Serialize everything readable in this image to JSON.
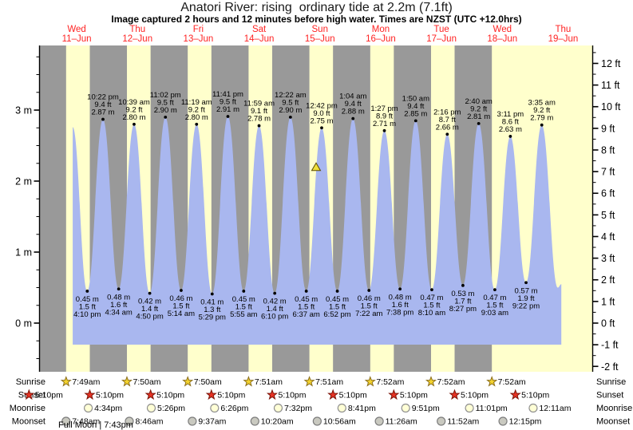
{
  "title": "Anatori River: rising  ordinary tide at 2.2m (7.1ft)",
  "subtitle": "Image captured 2 hours and 12 minutes before high water. Times are NZST (UTC +12.0hrs)",
  "footnote": "Full Moon | 7:43pm",
  "colors": {
    "day_band": "#ffffcc",
    "night_band": "#999999",
    "tide_fill": "#a9b7ef",
    "day_label_red": "#ff2222",
    "axis_black": "#000000",
    "sunrise_star_fill": "#f2d22e",
    "sunrise_star_stroke": "#8a6d1a",
    "sunset_star_fill": "#e63223",
    "sunset_star_stroke": "#7a1408",
    "moonrise_fill": "#ffffd6",
    "moonrise_stroke": "#8f8f8f",
    "moonset_fill": "#c9c9c0",
    "moonset_stroke": "#7d7d7d",
    "marker_fill": "#f0e03c",
    "marker_stroke": "#5a4a00"
  },
  "chart_data": {
    "type": "area",
    "title": "Anatori River: rising  ordinary tide at 2.2m (7.1ft)",
    "subtitle": "Image captured 2 hours and 12 minutes before high water. Times are NZST (UTC +12.0hrs)",
    "x_axis_days": [
      {
        "name": "Wed",
        "date": "11–Jun"
      },
      {
        "name": "Thu",
        "date": "12–Jun"
      },
      {
        "name": "Fri",
        "date": "13–Jun"
      },
      {
        "name": "Sat",
        "date": "14–Jun"
      },
      {
        "name": "Sun",
        "date": "15–Jun"
      },
      {
        "name": "Mon",
        "date": "16–Jun"
      },
      {
        "name": "Tue",
        "date": "17–Jun"
      },
      {
        "name": "Wed",
        "date": "18–Jun"
      },
      {
        "name": "Thu",
        "date": "19–Jun"
      }
    ],
    "y_axis_left": {
      "unit": "m",
      "major_ticks": [
        0,
        1,
        2,
        3
      ],
      "minor_step": 0.25,
      "range_m": [
        -0.69,
        3.91
      ]
    },
    "y_axis_right": {
      "unit": "ft",
      "major_min": -2,
      "major_max": 12,
      "minor_step": 0.5
    },
    "high_tides": [
      {
        "time": "10:22 pm",
        "ft": 9.4,
        "m": 2.87,
        "t": 22.37
      },
      {
        "time": "10:39 am",
        "ft": 9.2,
        "m": 2.8,
        "t": 34.65
      },
      {
        "time": "11:02 pm",
        "ft": 9.5,
        "m": 2.9,
        "t": 47.03
      },
      {
        "time": "11:19 am",
        "ft": 9.2,
        "m": 2.8,
        "t": 59.32
      },
      {
        "time": "11:41 pm",
        "ft": 9.5,
        "m": 2.91,
        "t": 71.68
      },
      {
        "time": "11:59 am",
        "ft": 9.1,
        "m": 2.78,
        "t": 83.98
      },
      {
        "time": "12:22 am",
        "ft": 9.5,
        "m": 2.9,
        "t": 96.37
      },
      {
        "time": "12:42 pm",
        "ft": 9.0,
        "m": 2.75,
        "t": 108.7
      },
      {
        "time": "1:04 am",
        "ft": 9.4,
        "m": 2.88,
        "t": 121.07
      },
      {
        "time": "1:27 pm",
        "ft": 8.9,
        "m": 2.71,
        "t": 133.45
      },
      {
        "time": "1:50 am",
        "ft": 9.4,
        "m": 2.85,
        "t": 145.83
      },
      {
        "time": "2:16 pm",
        "ft": 8.7,
        "m": 2.66,
        "t": 158.27
      },
      {
        "time": "2:40 am",
        "ft": 9.2,
        "m": 2.81,
        "t": 170.67
      },
      {
        "time": "3:11 pm",
        "ft": 8.6,
        "m": 2.63,
        "t": 183.18
      },
      {
        "time": "3:35 am",
        "ft": 9.2,
        "m": 2.79,
        "t": 195.58
      }
    ],
    "low_tides": [
      {
        "time": "4:10 pm",
        "ft": 1.5,
        "m": 0.45,
        "t": 16.17
      },
      {
        "time": "4:34 am",
        "ft": 1.6,
        "m": 0.48,
        "t": 28.57
      },
      {
        "time": "4:50 pm",
        "ft": 1.4,
        "m": 0.42,
        "t": 40.83
      },
      {
        "time": "5:14 am",
        "ft": 1.5,
        "m": 0.46,
        "t": 53.23
      },
      {
        "time": "5:29 pm",
        "ft": 1.3,
        "m": 0.41,
        "t": 65.48
      },
      {
        "time": "5:55 am",
        "ft": 1.5,
        "m": 0.45,
        "t": 77.92
      },
      {
        "time": "6:10 pm",
        "ft": 1.4,
        "m": 0.42,
        "t": 90.17
      },
      {
        "time": "6:37 am",
        "ft": 1.5,
        "m": 0.45,
        "t": 102.62
      },
      {
        "time": "6:52 pm",
        "ft": 1.5,
        "m": 0.45,
        "t": 114.87
      },
      {
        "time": "7:22 am",
        "ft": 1.5,
        "m": 0.46,
        "t": 127.37
      },
      {
        "time": "7:38 pm",
        "ft": 1.6,
        "m": 0.48,
        "t": 139.63
      },
      {
        "time": "8:10 am",
        "ft": 1.5,
        "m": 0.47,
        "t": 152.17
      },
      {
        "time": "8:27 pm",
        "ft": 1.7,
        "m": 0.53,
        "t": 164.45
      },
      {
        "time": "9:03 am",
        "ft": 1.5,
        "m": 0.47,
        "t": 177.05
      },
      {
        "time": "9:22 pm",
        "ft": 1.9,
        "m": 0.57,
        "t": 189.37
      }
    ],
    "curve_clip": {
      "start": {
        "t": 10.42,
        "m": 2.76
      },
      "tail_low": {
        "t": 201.9,
        "m": 0.5
      },
      "end": {
        "t": 203.3,
        "m": 0.55
      }
    },
    "current_marker": {
      "t": 106.5,
      "m": 2.2
    },
    "astro_rows": [
      {
        "key": "sunrise",
        "label": "Sunrise",
        "icon": "sunrise-star-icon",
        "entries": [
          {
            "time": "7:49am",
            "t": 7.82
          },
          {
            "time": "7:50am",
            "t": 31.83
          },
          {
            "time": "7:50am",
            "t": 55.83
          },
          {
            "time": "7:51am",
            "t": 79.85
          },
          {
            "time": "7:51am",
            "t": 103.85
          },
          {
            "time": "7:52am",
            "t": 127.87
          },
          {
            "time": "7:52am",
            "t": 151.87
          },
          {
            "time": "7:52am",
            "t": 175.87
          }
        ]
      },
      {
        "key": "sunset",
        "label": "Sunset",
        "icon": "sunset-star-icon",
        "entries": [
          {
            "time": "5:10pm",
            "t": -6.83
          },
          {
            "time": "5:10pm",
            "t": 17.17
          },
          {
            "time": "5:10pm",
            "t": 41.17
          },
          {
            "time": "5:10pm",
            "t": 65.17
          },
          {
            "time": "5:10pm",
            "t": 89.17
          },
          {
            "time": "5:10pm",
            "t": 113.17
          },
          {
            "time": "5:10pm",
            "t": 137.17
          },
          {
            "time": "5:10pm",
            "t": 161.17
          },
          {
            "time": "5:10pm",
            "t": 185.17
          }
        ]
      },
      {
        "key": "moonrise",
        "label": "Moonrise",
        "icon": "moonrise-circle-icon",
        "entries": [
          {
            "time": "4:34pm",
            "t": 16.57
          },
          {
            "time": "5:26pm",
            "t": 41.43
          },
          {
            "time": "6:26pm",
            "t": 66.43
          },
          {
            "time": "7:32pm",
            "t": 91.53
          },
          {
            "time": "8:41pm",
            "t": 116.68
          },
          {
            "time": "9:51pm",
            "t": 141.85
          },
          {
            "time": "11:01pm",
            "t": 167.02
          },
          {
            "time": "12:11am",
            "t": 192.18
          }
        ]
      },
      {
        "key": "moonset",
        "label": "Moonset",
        "icon": "moonset-circle-icon",
        "entries": [
          {
            "time": "7:48am",
            "t": 7.8
          },
          {
            "time": "8:46am",
            "t": 32.77
          },
          {
            "time": "9:37am",
            "t": 57.62
          },
          {
            "time": "10:20am",
            "t": 82.33
          },
          {
            "time": "10:56am",
            "t": 106.93
          },
          {
            "time": "11:26am",
            "t": 131.43
          },
          {
            "time": "11:52am",
            "t": 155.87
          },
          {
            "time": "12:15pm",
            "t": 180.25
          }
        ]
      }
    ],
    "footnote": "Full Moon | 7:43pm"
  }
}
